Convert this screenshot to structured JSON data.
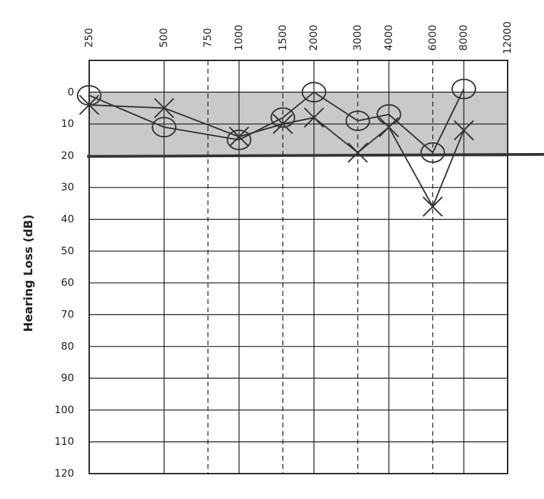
{
  "chart_data": {
    "type": "audiogram",
    "y_label": "Hearing Loss (dB)",
    "log_x": true,
    "xlim": [
      250,
      12000
    ],
    "xticks": [
      250,
      500,
      1000,
      2000,
      4000,
      8000,
      12000
    ],
    "minor_xticks": [
      750,
      1500,
      3000,
      6000
    ],
    "ylim": [
      -10,
      120
    ],
    "yticks": [
      0,
      10,
      20,
      30,
      40,
      50,
      60,
      70,
      80,
      90,
      100,
      110,
      120
    ],
    "inverted_y": true,
    "grid": true,
    "shaded_band": [
      0,
      20
    ],
    "x": [
      250,
      500,
      1000,
      1500,
      2000,
      3000,
      4000,
      6000,
      8000
    ],
    "series": [
      {
        "marker": "circle",
        "color": "#333333",
        "values": [
          1,
          11,
          15,
          8,
          0,
          9,
          7,
          19,
          -1
        ]
      },
      {
        "marker": "cross",
        "color": "#333333",
        "values": [
          4,
          5,
          14,
          10,
          8,
          19,
          11,
          36,
          12
        ]
      }
    ]
  }
}
